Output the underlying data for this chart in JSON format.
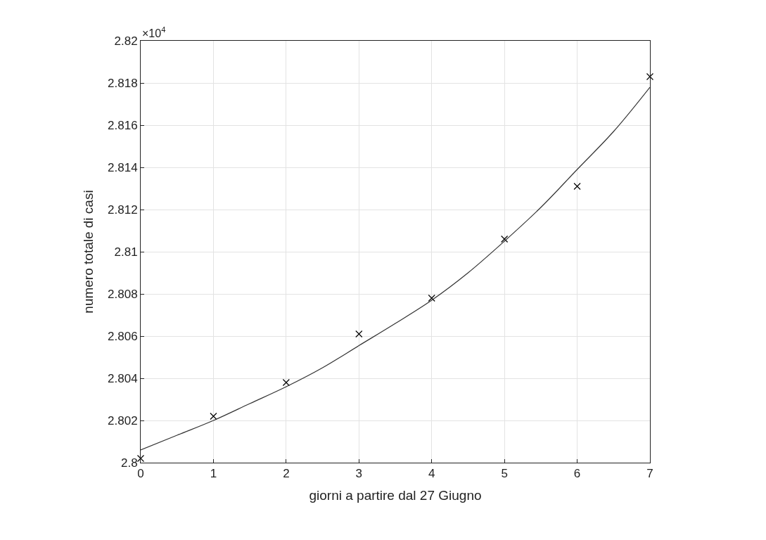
{
  "chart_data": {
    "type": "scatter",
    "xlabel": "giorni a partire dal 27 Giugno",
    "ylabel": "numero totale di casi",
    "annotations": [
      "×10$^{4}$"
    ],
    "series": [
      {
        "color": "#000000",
        "marker": "cross",
        "x": [
          0,
          1,
          2,
          3,
          4,
          5,
          6,
          7
        ],
        "values": [
          2.8002,
          2.8022,
          2.8038,
          2.8061,
          2.8078,
          2.8106,
          2.8131,
          2.8183
        ]
      },
      {
        "type": "line",
        "color": "#333333",
        "marker": "none",
        "line_style": "solid",
        "x": [
          0,
          0.5,
          1,
          1.5,
          2,
          2.5,
          3,
          3.5,
          4,
          4.5,
          5,
          5.5,
          6,
          6.5,
          7
        ],
        "values": [
          2.8006,
          2.8013,
          2.802,
          2.8028,
          2.8036,
          2.8045,
          2.80555,
          2.8066,
          2.8077,
          2.809,
          2.8105,
          2.8121,
          2.8139,
          2.8157,
          2.8178
        ]
      }
    ],
    "xlim": [
      0,
      7
    ],
    "xticks": [
      0,
      1,
      2,
      3,
      4,
      5,
      6,
      7
    ],
    "ylim": [
      2.8,
      2.82
    ],
    "yticks": [
      2.8,
      2.802,
      2.804,
      2.806,
      2.808,
      2.81,
      2.812,
      2.814,
      2.816,
      2.818,
      2.82
    ],
    "grid": true
  }
}
